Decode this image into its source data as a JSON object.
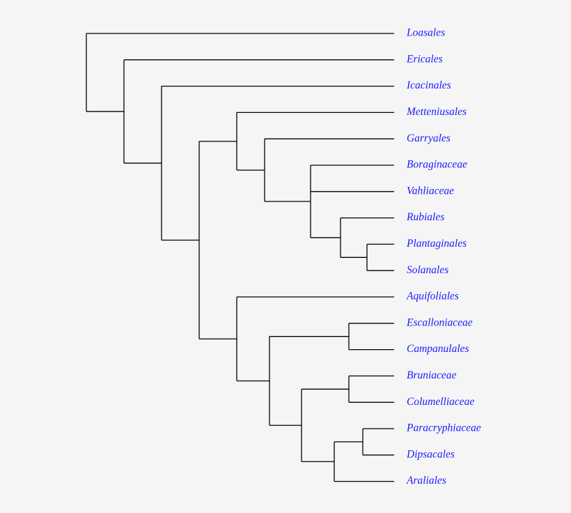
{
  "label_color": "#1a1aff",
  "line_color": "#000000",
  "taxa": [
    "Loasales",
    "Ericales",
    "Icacinales",
    "Metteniusales",
    "Garryales",
    "Boraginaceae",
    "Vahliaceae",
    "Rubiales",
    "Plantaginales",
    "Solanales",
    "Aquifoliales",
    "Escalloniaceae",
    "Campanulales",
    "Bruniaceae",
    "Columelliaceae",
    "Paracryphiaceae",
    "Dipsacales",
    "Araliales"
  ],
  "tree": {
    "children": [
      {
        "leaf": 0
      },
      {
        "children": [
          {
            "leaf": 1
          },
          {
            "children": [
              {
                "leaf": 2
              },
              {
                "children": [
                  {
                    "children": [
                      {
                        "leaf": 3
                      },
                      {
                        "children": [
                          {
                            "leaf": 4
                          },
                          {
                            "children": [
                              {
                                "leaf": 5
                              },
                              {
                                "leaf": 6
                              },
                              {
                                "children": [
                                  {
                                    "leaf": 7
                                  },
                                  {
                                    "children": [
                                      {
                                        "leaf": 8
                                      },
                                      {
                                        "leaf": 9
                                      }
                                    ]
                                  }
                                ]
                              }
                            ]
                          }
                        ]
                      }
                    ]
                  },
                  {
                    "children": [
                      {
                        "leaf": 10
                      },
                      {
                        "children": [
                          {
                            "children": [
                              {
                                "leaf": 11
                              },
                              {
                                "leaf": 12
                              }
                            ]
                          },
                          {
                            "children": [
                              {
                                "children": [
                                  {
                                    "leaf": 13
                                  },
                                  {
                                    "leaf": 14
                                  }
                                ]
                              },
                              {
                                "children": [
                                  {
                                    "children": [
                                      {
                                        "leaf": 15
                                      },
                                      {
                                        "leaf": 16
                                      }
                                    ]
                                  },
                                  {
                                    "leaf": 17
                                  }
                                ]
                              }
                            ]
                          }
                        ]
                      }
                    ]
                  }
                ]
              }
            ]
          }
        ]
      }
    ]
  }
}
